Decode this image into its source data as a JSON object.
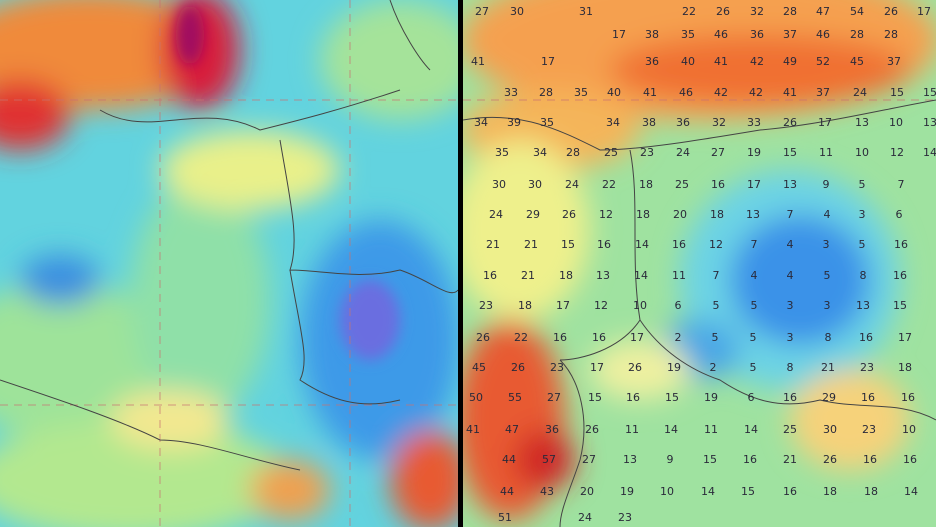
{
  "right_panel": {
    "rows": [
      [
        27,
        30,
        31,
        22,
        26,
        32,
        28,
        47,
        54,
        26,
        17
      ],
      [
        17,
        38,
        35,
        46,
        36,
        37,
        46,
        28,
        28
      ],
      [
        41,
        17,
        36,
        40,
        41,
        42,
        49,
        52,
        45,
        37
      ],
      [
        33,
        28,
        35,
        40,
        41,
        46,
        42,
        42,
        41,
        37,
        24,
        15,
        15
      ],
      [
        34,
        39,
        35,
        34,
        38,
        36,
        32,
        33,
        26,
        17,
        13,
        10,
        13
      ],
      [
        35,
        34,
        28,
        25,
        23,
        24,
        27,
        19,
        15,
        11,
        10,
        12,
        14
      ],
      [
        30,
        30,
        24,
        22,
        18,
        25,
        16,
        17,
        13,
        9,
        5,
        7
      ],
      [
        24,
        29,
        26,
        12,
        18,
        20,
        18,
        13,
        7,
        4,
        3,
        6
      ],
      [
        21,
        21,
        15,
        16,
        14,
        16,
        12,
        7,
        4,
        3,
        5,
        16
      ],
      [
        16,
        21,
        18,
        13,
        14,
        11,
        7,
        4,
        4,
        5,
        8,
        16
      ],
      [
        23,
        18,
        17,
        12,
        10,
        6,
        5,
        5,
        3,
        3,
        13,
        15
      ],
      [
        26,
        22,
        16,
        16,
        17,
        2,
        5,
        5,
        3,
        8,
        16,
        17
      ],
      [
        45,
        26,
        23,
        17,
        26,
        19,
        2,
        5,
        8,
        21,
        23,
        18
      ],
      [
        50,
        55,
        27,
        15,
        16,
        15,
        19,
        6,
        16,
        29,
        16,
        16
      ],
      [
        41,
        47,
        36,
        26,
        11,
        14,
        11,
        14,
        25,
        30,
        23,
        10
      ],
      [
        44,
        57,
        27,
        13,
        9,
        15,
        16,
        21,
        26,
        16,
        16
      ],
      [
        44,
        43,
        20,
        19,
        10,
        14,
        15,
        16,
        18,
        18,
        14
      ],
      [
        51,
        24,
        23
      ]
    ]
  }
}
